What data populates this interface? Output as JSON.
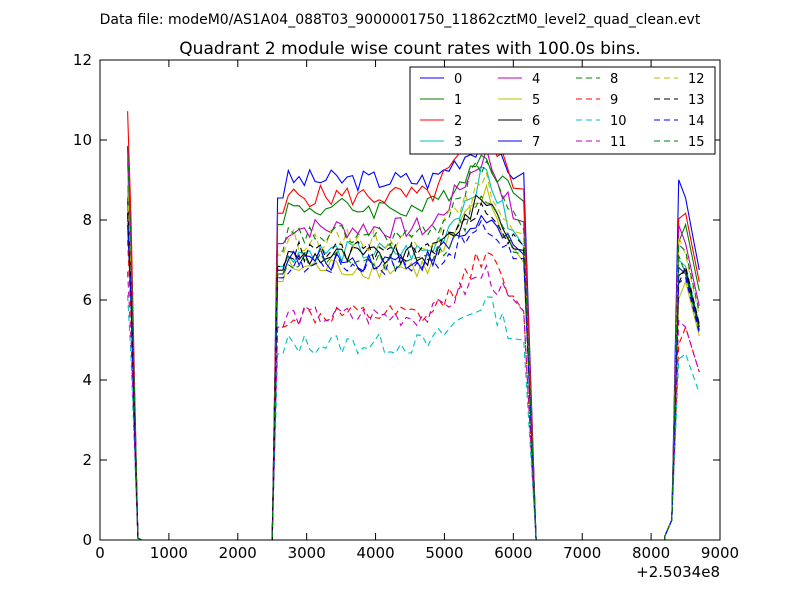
{
  "figure": {
    "suptitle": "Data file: modeM0/AS1A04_088T03_9000001750_11862cztM0_level2_quad_clean.evt"
  },
  "chart_data": {
    "type": "line",
    "title": "Quadrant 2 module wise count rates with 100.0s bins.",
    "xlabel": "",
    "ylabel": "",
    "x_offset_label": "+2.5034e8",
    "xlim": [
      0,
      9000
    ],
    "ylim": [
      0,
      12
    ],
    "xticks": [
      0,
      1000,
      2000,
      3000,
      4000,
      5000,
      6000,
      7000,
      8000,
      9000
    ],
    "yticks": [
      0,
      2,
      4,
      6,
      8,
      10,
      12
    ],
    "xticklabels": [
      "0",
      "1000",
      "2000",
      "3000",
      "4000",
      "5000",
      "6000",
      "7000",
      "8000",
      "9000"
    ],
    "yticklabels": [
      "0",
      "2",
      "4",
      "6",
      "8",
      "10",
      "12"
    ],
    "grid": false,
    "legend_position": "top-right",
    "legend_columns": 4,
    "segments": [
      {
        "x_start": 400,
        "step": 50,
        "count": 5
      },
      {
        "x_start": 2500,
        "step": 77.77,
        "count": 46
      },
      {
        "x_start": 8200,
        "step": 100,
        "count": 6
      }
    ],
    "series": [
      {
        "name": "0",
        "color": "#0000ff",
        "dash": "solid",
        "level": 9.0,
        "peak": 10.2
      },
      {
        "name": "1",
        "color": "#008000",
        "dash": "solid",
        "level": 8.3,
        "peak": 9.9
      },
      {
        "name": "2",
        "color": "#ff0000",
        "dash": "solid",
        "level": 8.6,
        "peak": 10.7
      },
      {
        "name": "3",
        "color": "#00bfbf",
        "dash": "solid",
        "level": 7.2,
        "peak": 9.6
      },
      {
        "name": "4",
        "color": "#bf00bf",
        "dash": "solid",
        "level": 7.8,
        "peak": 10.0
      },
      {
        "name": "5",
        "color": "#bfbf00",
        "dash": "solid",
        "level": 6.8,
        "peak": 9.0
      },
      {
        "name": "6",
        "color": "#000000",
        "dash": "solid",
        "level": 7.1,
        "peak": 8.9
      },
      {
        "name": "7",
        "color": "#0000ff",
        "dash": "solid",
        "level": 7.0,
        "peak": 8.3
      },
      {
        "name": "8",
        "color": "#008000",
        "dash": "dashed",
        "level": 7.0,
        "peak": 8.8
      },
      {
        "name": "9",
        "color": "#ff0000",
        "dash": "dashed",
        "level": 5.6,
        "peak": 7.5
      },
      {
        "name": "10",
        "color": "#00bfbf",
        "dash": "dashed",
        "level": 4.9,
        "peak": 6.2
      },
      {
        "name": "11",
        "color": "#bf00bf",
        "dash": "dashed",
        "level": 5.6,
        "peak": 6.9
      },
      {
        "name": "12",
        "color": "#bfbf00",
        "dash": "dashed",
        "level": 7.5,
        "peak": 9.2
      },
      {
        "name": "13",
        "color": "#000000",
        "dash": "dashed",
        "level": 7.2,
        "peak": 8.6
      },
      {
        "name": "14",
        "color": "#0000ff",
        "dash": "dashed",
        "level": 6.9,
        "peak": 8.0
      },
      {
        "name": "15",
        "color": "#008000",
        "dash": "dashed",
        "level": 7.6,
        "peak": 9.9
      }
    ]
  }
}
